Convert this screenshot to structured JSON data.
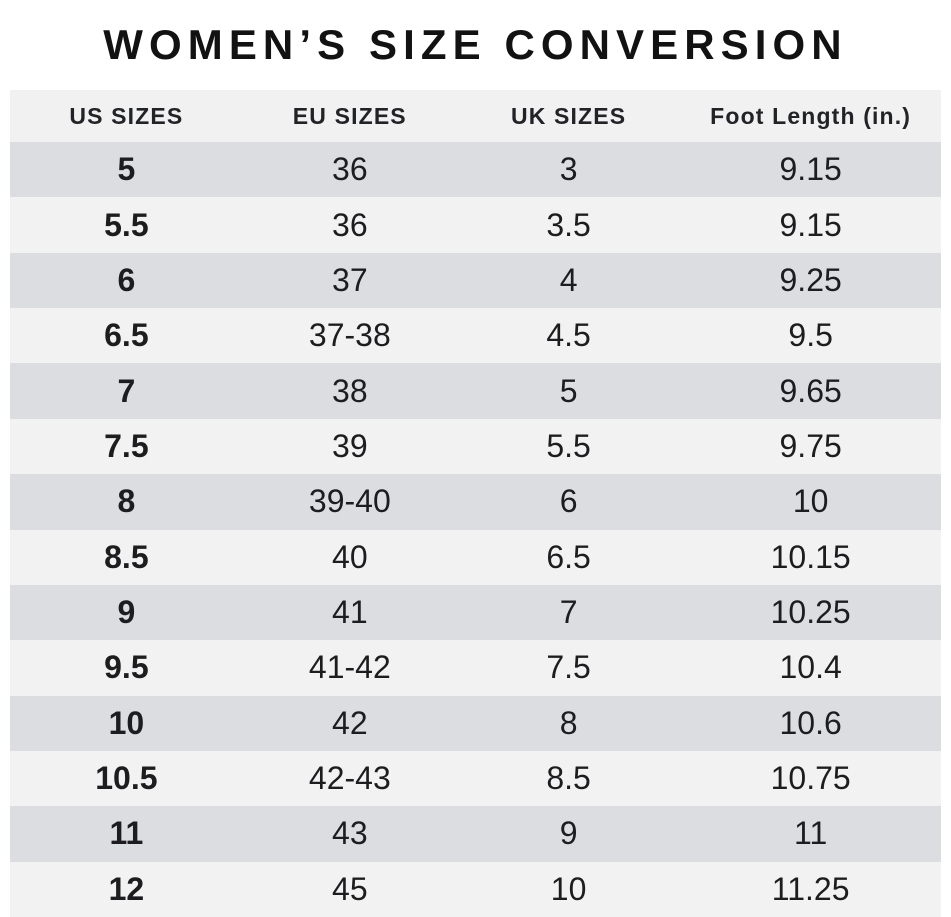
{
  "page": {
    "title": "WOMEN’S SIZE CONVERSION"
  },
  "chart_data": {
    "type": "table",
    "title": "WOMEN’S SIZE CONVERSION",
    "columns": [
      "US SIZES",
      "EU SIZES",
      "UK SIZES",
      "Foot Length (in.)"
    ],
    "rows": [
      [
        "5",
        "36",
        "3",
        "9.15"
      ],
      [
        "5.5",
        "36",
        "3.5",
        "9.15"
      ],
      [
        "6",
        "37",
        "4",
        "9.25"
      ],
      [
        "6.5",
        "37-38",
        "4.5",
        "9.5"
      ],
      [
        "7",
        "38",
        "5",
        "9.65"
      ],
      [
        "7.5",
        "39",
        "5.5",
        "9.75"
      ],
      [
        "8",
        "39-40",
        "6",
        "10"
      ],
      [
        "8.5",
        "40",
        "6.5",
        "10.15"
      ],
      [
        "9",
        "41",
        "7",
        "10.25"
      ],
      [
        "9.5",
        "41-42",
        "7.5",
        "10.4"
      ],
      [
        "10",
        "42",
        "8",
        "10.6"
      ],
      [
        "10.5",
        "42-43",
        "8.5",
        "10.75"
      ],
      [
        "11",
        "43",
        "9",
        "11"
      ],
      [
        "12",
        "45",
        "10",
        "11.25"
      ]
    ],
    "layout": {
      "header_position": "top",
      "row_striping": [
        "dark",
        "light"
      ],
      "first_column_bold": true,
      "grid": false
    }
  },
  "colors": {
    "page_bg": "#ffffff",
    "header_bg": "#f1f1f2",
    "row_dark": "#dcdde0",
    "row_light": "#f2f2f3",
    "text": "#1d1d1f",
    "title_text": "#121212"
  }
}
